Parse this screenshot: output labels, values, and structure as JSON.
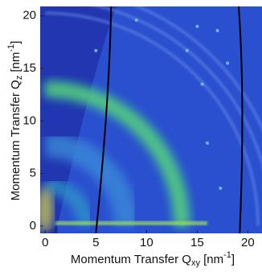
{
  "chart_data": {
    "type": "image",
    "xlabel": {
      "text": "Momentum Transfer Q",
      "sub": "xy",
      "unit": " [nm",
      "sup": "-1",
      "end": "]"
    },
    "ylabel": {
      "text": "Momentum Transfer Q",
      "sub": "z",
      "unit": " [nm",
      "sup": "-1",
      "end": "]"
    },
    "xlim": [
      -0.5,
      21.4
    ],
    "ylim": [
      -0.7,
      20.9
    ],
    "xticks": [
      0,
      5,
      10,
      15,
      20
    ],
    "yticks": [
      0,
      5,
      10,
      15,
      20
    ]
  }
}
